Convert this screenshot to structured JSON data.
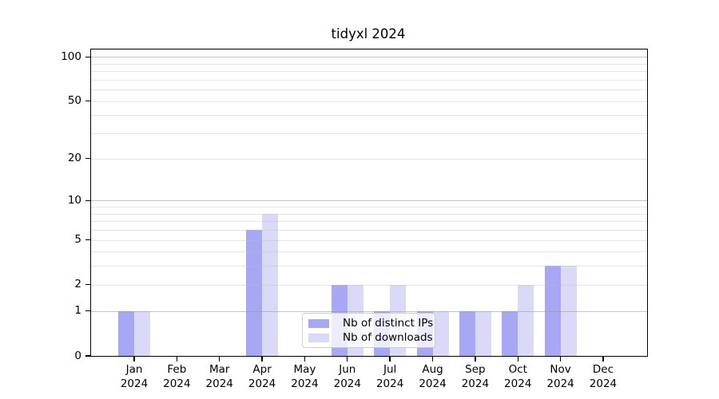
{
  "chart_data": {
    "type": "bar",
    "title": "tidyxl 2024",
    "categories": [
      "Jan 2024",
      "Feb 2024",
      "Mar 2024",
      "Apr 2024",
      "May 2024",
      "Jun 2024",
      "Jul 2024",
      "Aug 2024",
      "Sep 2024",
      "Oct 2024",
      "Nov 2024",
      "Dec 2024"
    ],
    "series": [
      {
        "name": "Nb of distinct IPs",
        "color": "#a7a7f3",
        "values": [
          1,
          0,
          0,
          6,
          0,
          2,
          1,
          1,
          1,
          1,
          3,
          0
        ]
      },
      {
        "name": "Nb of downloads",
        "color": "#dadaf8",
        "values": [
          1,
          0,
          0,
          8,
          0,
          2,
          2,
          1,
          1,
          2,
          3,
          0
        ]
      }
    ],
    "xlabel": "",
    "ylabel": "",
    "y_ticks": [
      0,
      1,
      2,
      5,
      10,
      20,
      50,
      100
    ],
    "y_minor_gridlines": [
      2,
      3,
      4,
      5,
      6,
      7,
      8,
      9,
      20,
      30,
      40,
      50,
      60,
      70,
      80,
      90
    ],
    "y_major_gridlines": [
      1,
      10,
      100
    ],
    "y_scale": "log1p",
    "ylim": [
      0,
      112
    ],
    "grid": "horizontal only, drawn over bars",
    "legend_position": "inside bottom-center"
  },
  "colors": {
    "background": "#ffffff",
    "axis": "#000000",
    "major_grid": "#c9c9c9",
    "minor_grid": "#e9e9e9",
    "legend_border": "#cccccc"
  }
}
